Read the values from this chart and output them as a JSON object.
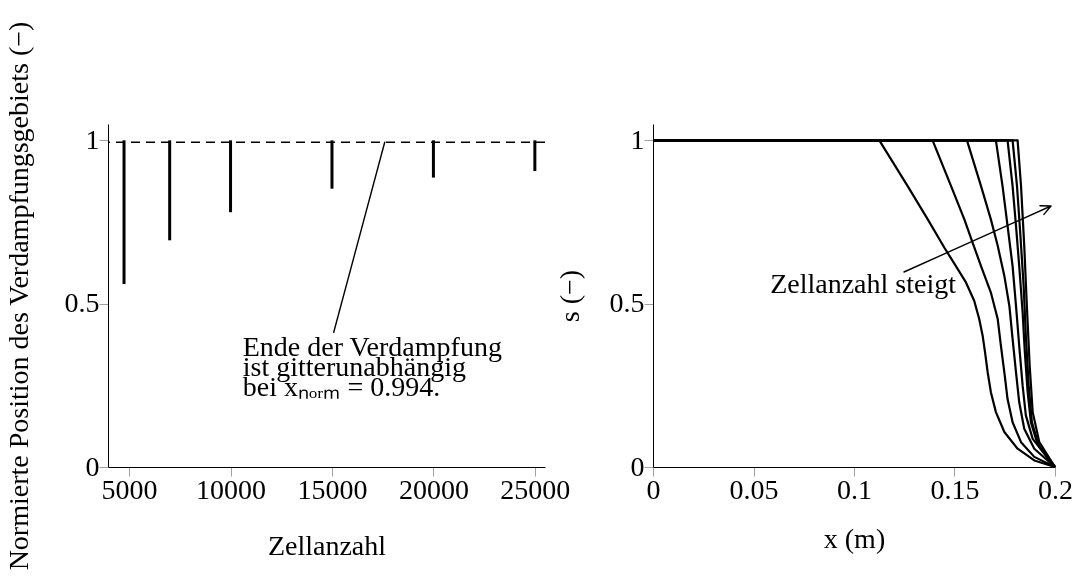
{
  "chart_data": [
    {
      "type": "bar",
      "x": [
        4750,
        7000,
        10000,
        15000,
        20000,
        25000
      ],
      "series": [
        {
          "color": "#000000",
          "base": [
            0.56,
            0.694,
            0.78,
            0.852,
            0.886,
            0.906
          ],
          "values": [
            0.44,
            0.306,
            0.22,
            0.148,
            0.114,
            0.094
          ]
        }
      ],
      "ref_lines": [
        {
          "axis": "y",
          "value": 0.994,
          "line_style": "dashed",
          "color": "#000000"
        }
      ],
      "xlim": [
        3960,
        25500
      ],
      "xticks": [
        5000,
        10000,
        15000,
        20000,
        25000
      ],
      "ylim": [
        0,
        1.05
      ],
      "yticks": [
        0,
        0.5,
        1
      ],
      "xlabel": "Zellanzahl",
      "ylabel": "Normierte Position des Verdampfungsgebiets (−)",
      "annotations": [
        {
          "text": "Ende der Verdampfung\nist gitterunabhängig\nbei xₙₒᵣₘ = 0.994.",
          "x": 17600,
          "y": 0.994
        }
      ]
    },
    {
      "type": "line",
      "series": [
        {
          "color": "#000000",
          "x": [
            0,
            0.1126,
            0.1267,
            0.1367,
            0.1449,
            0.1507,
            0.1557,
            0.1598,
            0.1623,
            0.164,
            0.1652,
            0.1665,
            0.1681,
            0.1706,
            0.1748,
            0.1814,
            0.1897,
            0.2
          ],
          "values": [
            1,
            1,
            0.86,
            0.758,
            0.672,
            0.615,
            0.565,
            0.509,
            0.453,
            0.402,
            0.351,
            0.29,
            0.229,
            0.168,
            0.107,
            0.056,
            0.02,
            0
          ]
        },
        {
          "color": "#000000",
          "x": [
            0,
            0.1391,
            0.1483,
            0.1549,
            0.159,
            0.1632,
            0.1681,
            0.1715,
            0.1731,
            0.1748,
            0.1764,
            0.1789,
            0.1831,
            0.1897,
            0.2
          ],
          "values": [
            1,
            1,
            0.86,
            0.758,
            0.687,
            0.615,
            0.534,
            0.453,
            0.371,
            0.29,
            0.208,
            0.137,
            0.076,
            0.031,
            0
          ]
        },
        {
          "color": "#000000",
          "x": [
            0,
            0.1562,
            0.1632,
            0.1681,
            0.1715,
            0.1748,
            0.1773,
            0.1789,
            0.1806,
            0.1822,
            0.1847,
            0.1897,
            0.2
          ],
          "values": [
            1,
            1,
            0.86,
            0.758,
            0.677,
            0.585,
            0.493,
            0.392,
            0.29,
            0.198,
            0.117,
            0.056,
            0
          ]
        },
        {
          "color": "#000000",
          "x": [
            0,
            0.1706,
            0.1739,
            0.1764,
            0.1789,
            0.1806,
            0.1822,
            0.1839,
            0.1855,
            0.1889,
            0.2
          ],
          "values": [
            1,
            1,
            0.86,
            0.738,
            0.615,
            0.493,
            0.371,
            0.249,
            0.158,
            0.086,
            0
          ]
        },
        {
          "color": "#000000",
          "x": [
            0,
            0.1764,
            0.1789,
            0.1806,
            0.1822,
            0.1839,
            0.185,
            0.1864,
            0.188,
            0.1913,
            0.2
          ],
          "values": [
            1,
            1,
            0.86,
            0.738,
            0.615,
            0.473,
            0.351,
            0.229,
            0.137,
            0.071,
            0
          ]
        },
        {
          "color": "#000000",
          "x": [
            0,
            0.1789,
            0.1811,
            0.1827,
            0.1844,
            0.1855,
            0.1869,
            0.1885,
            0.1922,
            0.2
          ],
          "values": [
            1,
            1,
            0.86,
            0.717,
            0.554,
            0.402,
            0.249,
            0.137,
            0.061,
            0
          ]
        },
        {
          "color": "#000000",
          "x": [
            0,
            0.1814,
            0.1831,
            0.1847,
            0.186,
            0.1874,
            0.1889,
            0.1922,
            0.2
          ],
          "values": [
            1,
            1,
            0.86,
            0.677,
            0.493,
            0.31,
            0.168,
            0.076,
            0
          ]
        }
      ],
      "xlim": [
        0,
        0.2
      ],
      "xticks": [
        0,
        0.05,
        0.1,
        0.15,
        0.2
      ],
      "ylim": [
        0,
        1.05
      ],
      "yticks": [
        0,
        0.5,
        1
      ],
      "xlabel": "x (m)",
      "ylabel": "s (−)",
      "annotations": [
        "Zellanzahl steigt"
      ]
    }
  ]
}
